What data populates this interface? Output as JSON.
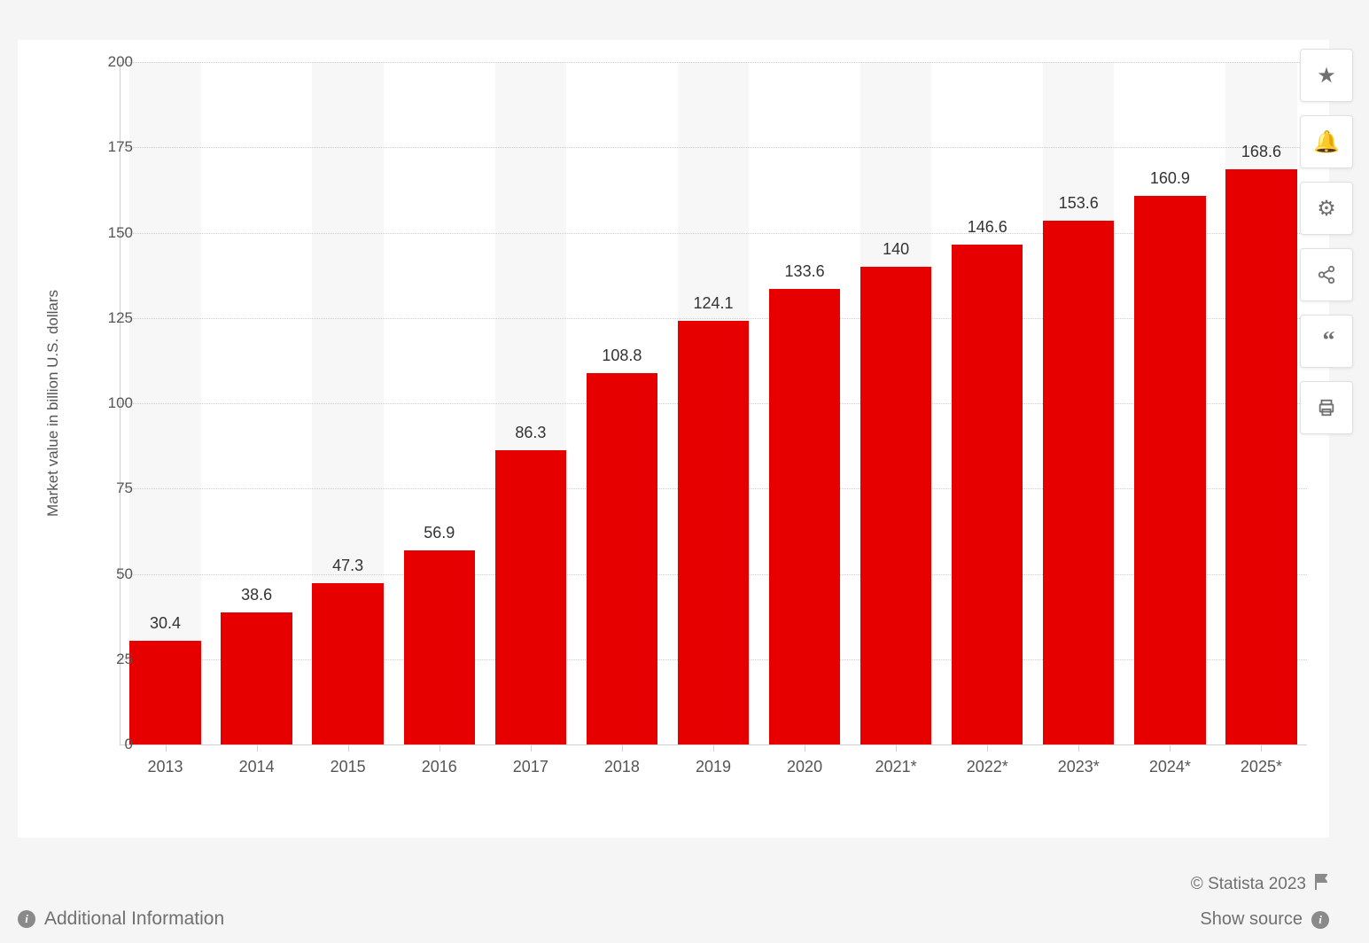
{
  "chart": {
    "type": "bar",
    "categories": [
      "2013",
      "2014",
      "2015",
      "2016",
      "2017",
      "2018",
      "2019",
      "2020",
      "2021*",
      "2022*",
      "2023*",
      "2024*",
      "2025*"
    ],
    "values": [
      30.4,
      38.6,
      47.3,
      56.9,
      86.3,
      108.8,
      124.1,
      133.6,
      140,
      146.6,
      153.6,
      160.9,
      168.6
    ],
    "value_labels": [
      "30.4",
      "38.6",
      "47.3",
      "56.9",
      "86.3",
      "108.8",
      "124.1",
      "133.6",
      "140",
      "146.6",
      "153.6",
      "160.9",
      "168.6"
    ],
    "bar_color": "#e60000",
    "background_color": "#ffffff",
    "stripe_color": "#f7f7f7",
    "grid_color": "#cccccc",
    "ylabel": "Market value in billion U.S. dollars",
    "ylim": [
      0,
      200
    ],
    "ytick_step": 25,
    "yticks": [
      0,
      25,
      50,
      75,
      100,
      125,
      150,
      175,
      200
    ],
    "bar_width_ratio": 0.78,
    "label_fontsize": 17,
    "value_fontsize": 18,
    "tick_fontsize": 18
  },
  "side_buttons": [
    {
      "name": "favorite-icon",
      "glyph": "★"
    },
    {
      "name": "bell-icon",
      "glyph": "🔔"
    },
    {
      "name": "gear-icon",
      "glyph": "⚙"
    },
    {
      "name": "share-icon",
      "glyph": "share"
    },
    {
      "name": "quote-icon",
      "glyph": "❝"
    },
    {
      "name": "print-icon",
      "glyph": "print"
    }
  ],
  "footer": {
    "additional_info": "Additional Information",
    "copyright": "© Statista 2023",
    "show_source": "Show source"
  }
}
